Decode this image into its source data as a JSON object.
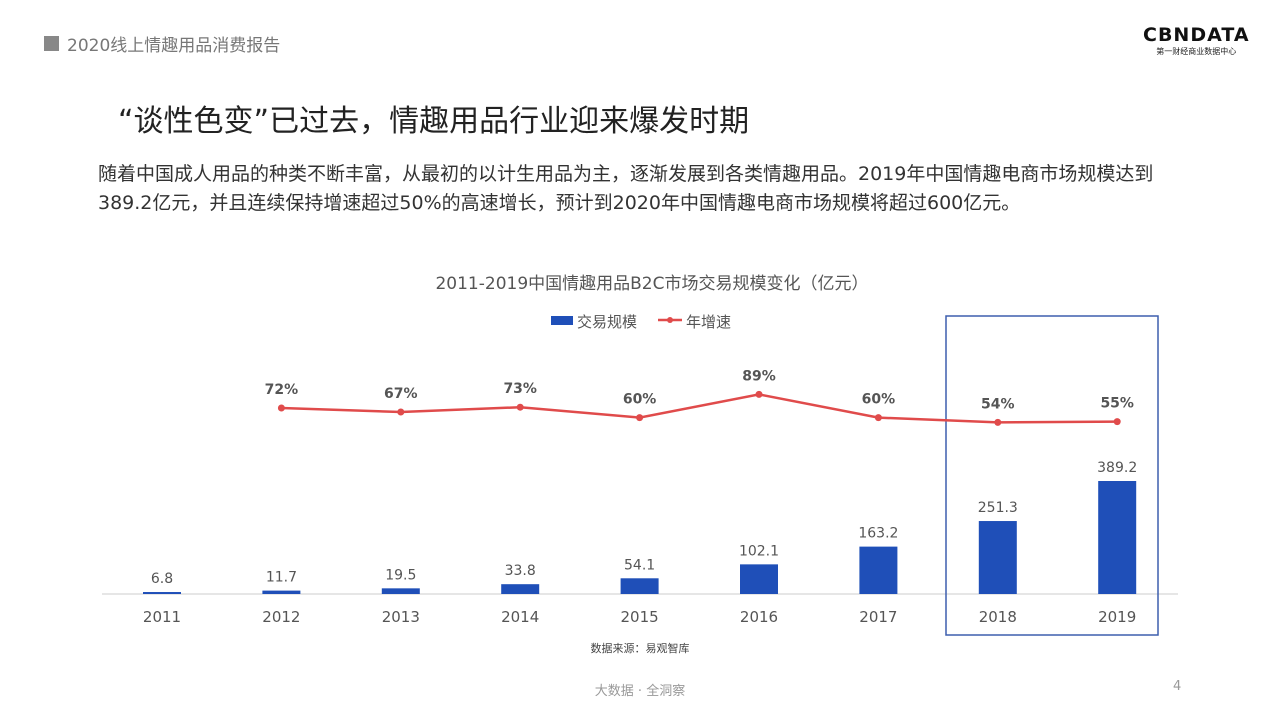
{
  "header": {
    "report_title": "2020线上情趣用品消费报告",
    "logo_main": "CBNDATA",
    "logo_sub": "第一财经商业数据中心"
  },
  "slide": {
    "title": "“谈性色变”已过去，情趣用品行业迎来爆发时期",
    "description": "随着中国成人用品的种类不断丰富，从最初的以计生用品为主，逐渐发展到各类情趣用品。2019年中国情趣电商市场规模达到389.2亿元，并且连续保持增速超过50%的高速增长，预计到2020年中国情趣电商市场规模将超过600亿元。"
  },
  "chart_data": {
    "type": "bar+line",
    "title": "2011-2019中国情趣用品B2C市场交易规模变化（亿元）",
    "categories": [
      "2011",
      "2012",
      "2013",
      "2014",
      "2015",
      "2016",
      "2017",
      "2018",
      "2019"
    ],
    "series": [
      {
        "name": "交易规模",
        "type": "bar",
        "color": "#1f4fb8",
        "values": [
          6.8,
          11.7,
          19.5,
          33.8,
          54.1,
          102.1,
          163.2,
          251.3,
          389.2
        ],
        "labels": [
          "6.8",
          "11.7",
          "19.5",
          "33.8",
          "54.1",
          "102.1",
          "163.2",
          "251.3",
          "389.2"
        ]
      },
      {
        "name": "年增速",
        "type": "line",
        "color": "#e04b4b",
        "values": [
          null,
          72,
          67,
          73,
          60,
          89,
          60,
          54,
          55
        ],
        "labels": [
          "",
          "72%",
          "67%",
          "73%",
          "60%",
          "89%",
          "60%",
          "54%",
          "55%"
        ]
      }
    ],
    "legend": "top-center",
    "highlight": [
      "2018",
      "2019"
    ],
    "source": "数据来源：易观智库"
  },
  "footer": {
    "tagline": "大数据 · 全洞察",
    "page": "4"
  }
}
